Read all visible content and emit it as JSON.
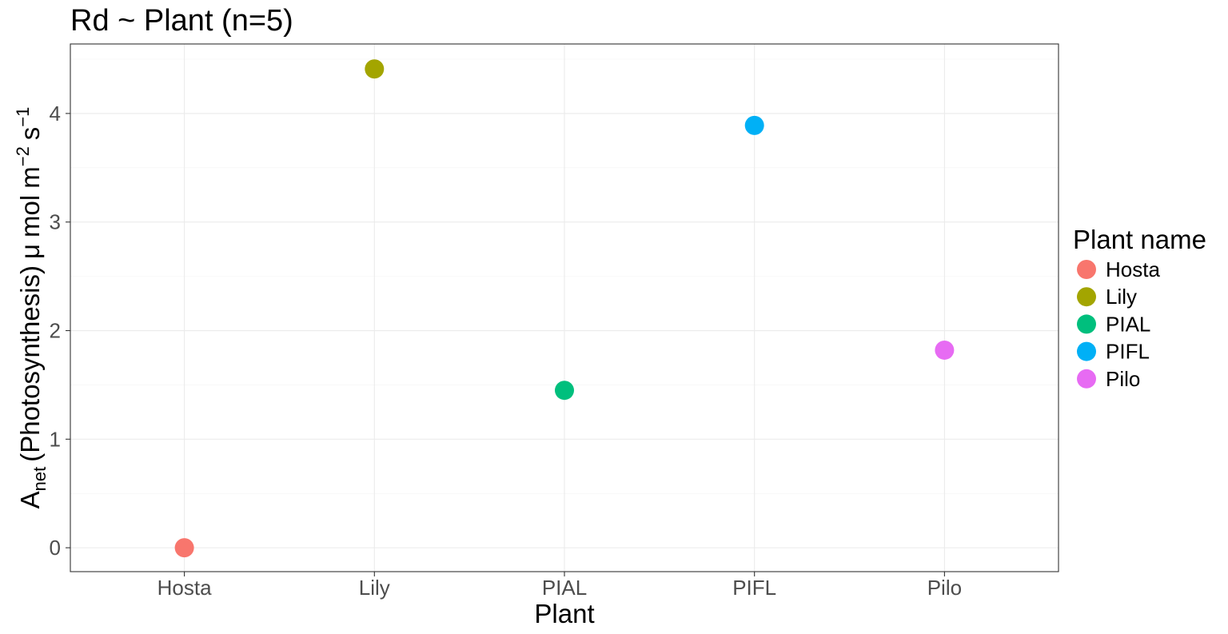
{
  "chart_data": {
    "type": "scatter",
    "title": "Rd ~ Plant (n=5)",
    "xlabel": "Plant",
    "ylabel": {
      "A": "A",
      "net": "net",
      "open": "(",
      "photosynthesis": "Photosynthesis",
      "close": ")",
      "mu": "μ",
      "mol": "mol",
      "m": "m",
      "exp_m": "−2",
      "s": "s",
      "exp_s": "−1"
    },
    "categories": [
      "Hosta",
      "Lily",
      "PIAL",
      "PIFL",
      "Pilo"
    ],
    "values": [
      0.0,
      4.41,
      1.45,
      3.89,
      1.82
    ],
    "ylim": [
      -0.22,
      4.64
    ],
    "yticks": [
      0,
      1,
      2,
      3,
      4
    ],
    "ytick_labels": [
      "0",
      "1",
      "2",
      "3",
      "4"
    ],
    "grid": true,
    "legend": {
      "title": "Plant name",
      "placement": "right",
      "entries": [
        "Hosta",
        "Lily",
        "PIAL",
        "PIFL",
        "Pilo"
      ]
    },
    "colors": [
      "#F8766D",
      "#A3A500",
      "#00BF7D",
      "#00B0F6",
      "#E76BF3"
    ]
  }
}
